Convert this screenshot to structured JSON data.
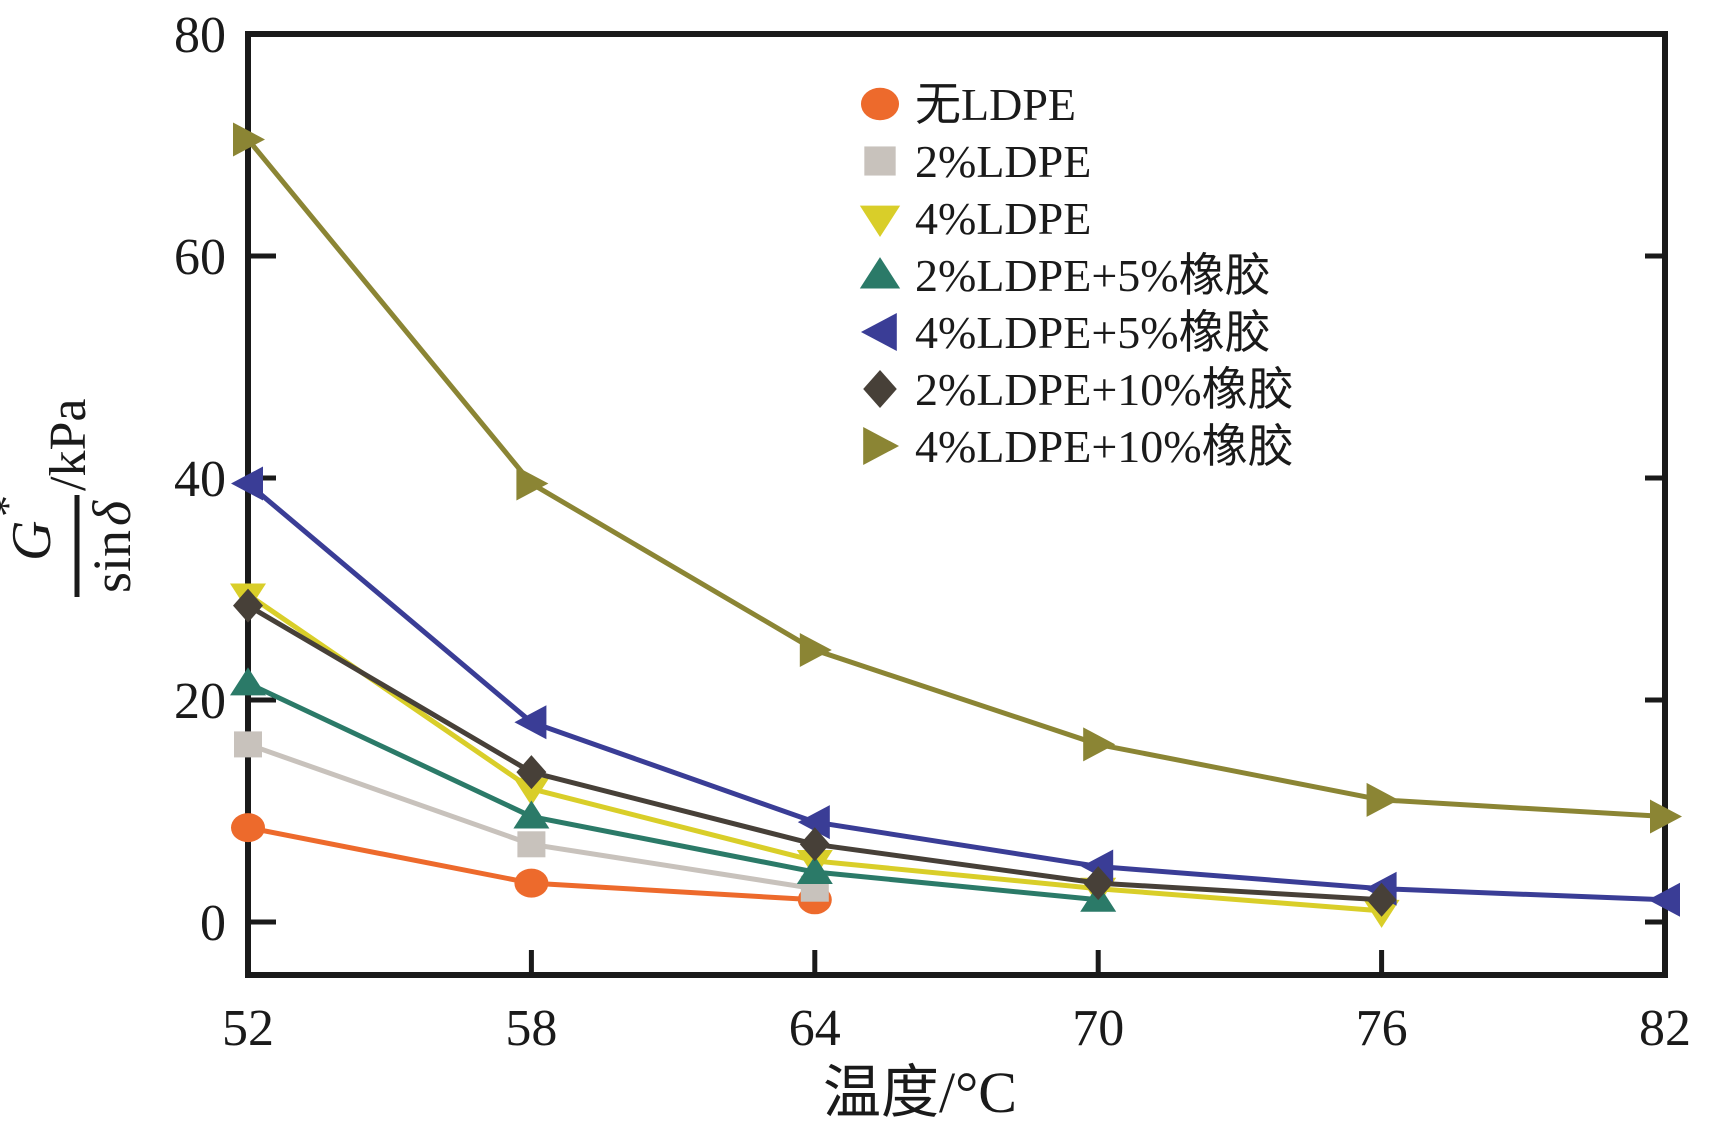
{
  "chart_data": {
    "type": "line",
    "title": "",
    "xlabel": "温度/°C",
    "ylabel": {
      "numerator": "G",
      "numerator_sup": "*",
      "denominator_fn": "sin",
      "denominator_arg": "δ",
      "unit": "/kPa"
    },
    "x_ticks": [
      52,
      58,
      64,
      70,
      76,
      82
    ],
    "y_ticks": [
      0,
      20,
      40,
      60,
      80
    ],
    "xlim": [
      52,
      82
    ],
    "ylim": [
      -4.8,
      80
    ],
    "grid": false,
    "legend_position": "inside-top-center",
    "axis_color": "#1a1a1a",
    "series": [
      {
        "name": "无LDPE",
        "marker": "circle",
        "color": "#ED6A2C",
        "x": [
          52,
          58,
          64
        ],
        "y": [
          8.5,
          3.5,
          2.0
        ]
      },
      {
        "name": "2%LDPE",
        "marker": "square",
        "color": "#C8C2BC",
        "x": [
          52,
          58,
          64
        ],
        "y": [
          16.0,
          7.0,
          3.0
        ]
      },
      {
        "name": "4%LDPE",
        "marker": "triangle-down",
        "color": "#D9CE29",
        "x": [
          52,
          58,
          64,
          70,
          76
        ],
        "y": [
          29.5,
          12.0,
          5.5,
          3.0,
          1.0
        ]
      },
      {
        "name": "2%LDPE+5%橡胶",
        "marker": "triangle-up",
        "color": "#2B7A68",
        "x": [
          52,
          58,
          64,
          70
        ],
        "y": [
          21.5,
          9.5,
          4.5,
          2.0
        ]
      },
      {
        "name": "4%LDPE+5%橡胶",
        "marker": "triangle-left",
        "color": "#3A3D96",
        "x": [
          52,
          58,
          64,
          70,
          76,
          82
        ],
        "y": [
          39.5,
          18.0,
          9.0,
          5.0,
          3.0,
          2.0
        ]
      },
      {
        "name": "2%LDPE+10%橡胶",
        "marker": "diamond",
        "color": "#474038",
        "x": [
          52,
          58,
          64,
          70,
          76
        ],
        "y": [
          28.5,
          13.5,
          7.0,
          3.5,
          2.0
        ]
      },
      {
        "name": "4%LDPE+10%橡胶",
        "marker": "triangle-right",
        "color": "#8B8534",
        "x": [
          52,
          58,
          64,
          70,
          76,
          82
        ],
        "y": [
          70.5,
          39.5,
          24.5,
          16.0,
          11.0,
          9.5
        ]
      }
    ]
  }
}
